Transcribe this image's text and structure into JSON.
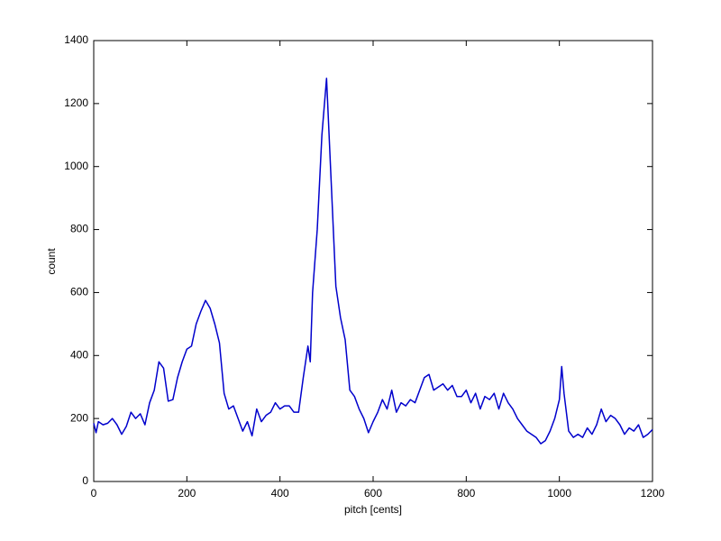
{
  "chart_data": {
    "type": "line",
    "xlabel": "pitch [cents]",
    "ylabel": "count",
    "x": [
      0,
      5,
      10,
      20,
      30,
      40,
      50,
      60,
      70,
      80,
      90,
      100,
      110,
      120,
      130,
      140,
      150,
      160,
      170,
      180,
      190,
      200,
      210,
      220,
      230,
      240,
      250,
      260,
      270,
      280,
      290,
      300,
      310,
      320,
      330,
      340,
      350,
      360,
      370,
      380,
      390,
      400,
      410,
      420,
      430,
      440,
      450,
      460,
      465,
      470,
      480,
      490,
      500,
      510,
      520,
      530,
      540,
      550,
      560,
      570,
      580,
      590,
      600,
      610,
      620,
      630,
      640,
      650,
      660,
      670,
      680,
      690,
      700,
      710,
      720,
      730,
      740,
      750,
      760,
      770,
      780,
      790,
      800,
      810,
      820,
      830,
      840,
      850,
      860,
      870,
      880,
      890,
      900,
      910,
      920,
      930,
      940,
      950,
      960,
      970,
      980,
      990,
      1000,
      1005,
      1010,
      1020,
      1030,
      1040,
      1050,
      1060,
      1070,
      1080,
      1090,
      1100,
      1110,
      1120,
      1130,
      1140,
      1150,
      1160,
      1170,
      1180,
      1190,
      1200
    ],
    "values": [
      185,
      155,
      190,
      180,
      185,
      200,
      180,
      150,
      175,
      220,
      200,
      215,
      180,
      250,
      290,
      380,
      360,
      255,
      260,
      330,
      380,
      420,
      430,
      500,
      540,
      575,
      550,
      500,
      440,
      280,
      230,
      240,
      200,
      160,
      190,
      145,
      230,
      190,
      210,
      220,
      250,
      230,
      240,
      240,
      220,
      220,
      330,
      430,
      380,
      600,
      800,
      1100,
      1280,
      950,
      620,
      520,
      450,
      290,
      270,
      230,
      200,
      155,
      190,
      220,
      260,
      230,
      290,
      220,
      250,
      240,
      260,
      250,
      290,
      330,
      340,
      290,
      300,
      310,
      290,
      305,
      270,
      270,
      290,
      250,
      280,
      230,
      270,
      260,
      280,
      230,
      280,
      250,
      230,
      200,
      180,
      160,
      150,
      140,
      120,
      130,
      160,
      200,
      260,
      365,
      280,
      160,
      140,
      150,
      140,
      170,
      150,
      180,
      230,
      190,
      210,
      200,
      180,
      150,
      170,
      160,
      180,
      140,
      150,
      165
    ],
    "color": "#0000cc",
    "xlim": [
      0,
      1200
    ],
    "xticks": [
      0,
      200,
      400,
      600,
      800,
      1000,
      1200
    ],
    "ylim": [
      0,
      1400
    ],
    "yticks": [
      0,
      200,
      400,
      600,
      800,
      1000,
      1200,
      1400
    ],
    "grid": false
  }
}
